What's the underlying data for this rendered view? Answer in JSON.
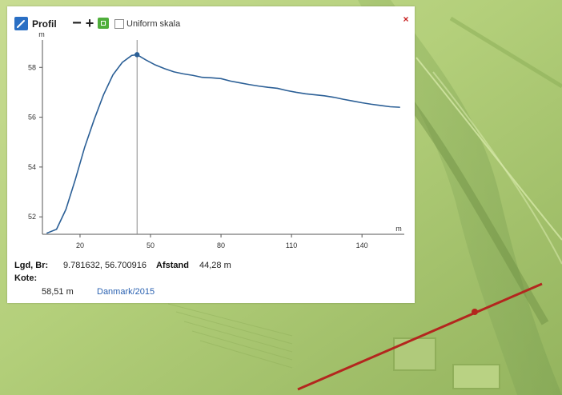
{
  "toolbar": {
    "title": "Profil",
    "minus_label": "−",
    "plus_label": "+",
    "uniform_label": "Uniform skala",
    "close_label": "×"
  },
  "info": {
    "coords_label": "Lgd, Br:",
    "coords_value": "9.781632, 56.700916",
    "distance_label": "Afstand",
    "distance_value": "44,28 m",
    "height_label": "Kote:",
    "height_value": "58,51 m",
    "dataset_link": "Danmark/2015"
  },
  "colors": {
    "profile_line": "#2b5f96",
    "map_fill": "#a9c76f",
    "map_route": "#b3261e",
    "accent_blue": "#2a6fc4",
    "close_red": "#c81f1f"
  },
  "map": {
    "route_points": [
      [
        -0.06,
        0.1
      ],
      [
        1.0,
        0.1
      ]
    ]
  },
  "chart_data": {
    "type": "line",
    "title": "",
    "xlabel": "m",
    "ylabel": "m",
    "xlim": [
      4,
      158
    ],
    "ylim": [
      51.3,
      59.1
    ],
    "xticks": [
      20,
      50,
      80,
      110,
      140
    ],
    "yticks": [
      52,
      54,
      56,
      58
    ],
    "x_tick_labels": [
      "20",
      "50",
      "80",
      "110",
      "140"
    ],
    "y_tick_labels": [
      "52",
      "54",
      "56",
      "58"
    ],
    "marker_x": 44.28,
    "marker_y": 58.51,
    "series": [
      {
        "name": "",
        "x": [
          6,
          10,
          14,
          18,
          22,
          26,
          30,
          34,
          38,
          42,
          44.28,
          48,
          52,
          56,
          60,
          64,
          68,
          72,
          76,
          80,
          84,
          88,
          92,
          96,
          100,
          104,
          108,
          112,
          116,
          120,
          124,
          128,
          132,
          136,
          140,
          144,
          148,
          152,
          156
        ],
        "values": [
          51.35,
          51.5,
          52.3,
          53.5,
          54.8,
          55.9,
          56.9,
          57.7,
          58.2,
          58.48,
          58.51,
          58.3,
          58.1,
          57.95,
          57.82,
          57.74,
          57.68,
          57.6,
          57.58,
          57.55,
          57.45,
          57.38,
          57.31,
          57.25,
          57.2,
          57.16,
          57.07,
          57.0,
          56.94,
          56.9,
          56.86,
          56.8,
          56.72,
          56.65,
          56.58,
          56.52,
          56.47,
          56.42,
          56.4
        ]
      }
    ]
  }
}
